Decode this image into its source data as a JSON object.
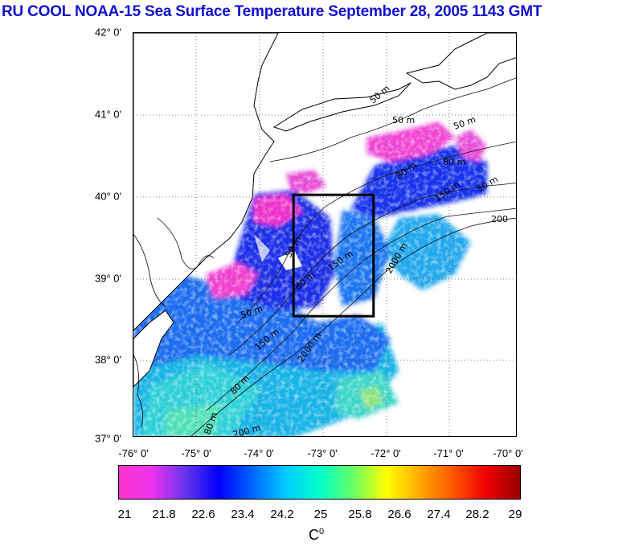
{
  "title": "RU COOL  NOAA-15 Sea Surface Temperature September 28, 2005 1143 GMT",
  "latitude_labels": [
    "42° 0'",
    "41° 0'",
    "40° 0'",
    "39° 0'",
    "38° 0'",
    "37° 0'"
  ],
  "longitude_labels": [
    "-76° 0'",
    "-75° 0'",
    "-74° 0'",
    "-73° 0'",
    "-72° 0'",
    "-71° 0'",
    "-70° 0'"
  ],
  "contour_labels": [
    "50 m",
    "50 m",
    "50 m",
    "80 m",
    "150 m",
    "200",
    "50 m",
    "80 m",
    "150 m",
    "2000 m",
    "50 m",
    "80 m",
    "150 m",
    "2000 m",
    "80 m",
    "80 m",
    "50 m",
    "200 m"
  ],
  "colorbar": {
    "ticks": [
      "21",
      "21.8",
      "22.6",
      "23.4",
      "24.2",
      "25",
      "25.8",
      "26.6",
      "27.4",
      "28.2",
      "29"
    ],
    "min": 21,
    "max": 29,
    "unit_base": "C",
    "unit_sup": "0",
    "colors": [
      "#ff33cc",
      "#ee33ee",
      "#6633ee",
      "#0000ff",
      "#0066ff",
      "#00ccff",
      "#00ffcc",
      "#66ff66",
      "#ffff00",
      "#ffaa00",
      "#ff5500",
      "#ee0000",
      "#990000"
    ]
  },
  "study_box": {
    "lon_min": -73.5,
    "lon_max": -72.25,
    "lat_min": 38.5,
    "lat_max": 40.0
  },
  "map": {
    "lon_min": -76,
    "lon_max": -70,
    "lat_min": 37,
    "lat_max": 42,
    "grid": "dotted"
  }
}
